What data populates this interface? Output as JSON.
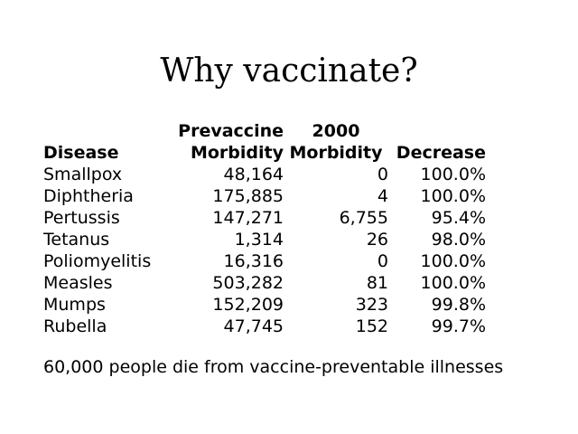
{
  "title": "Why vaccinate?",
  "table": {
    "headers": {
      "disease": "Disease",
      "prevaccine_line1": "Prevaccine",
      "prevaccine_line2": "Morbidity",
      "y2000_line1": "2000",
      "y2000_line2": "Morbidity",
      "decrease": "Decrease"
    },
    "rows": [
      {
        "disease": "Smallpox",
        "prevaccine": "48,164",
        "y2000": "0",
        "decrease": "100.0%"
      },
      {
        "disease": "Diphtheria",
        "prevaccine": "175,885",
        "y2000": "4",
        "decrease": "100.0%"
      },
      {
        "disease": "Pertussis",
        "prevaccine": "147,271",
        "y2000": "6,755",
        "decrease": "95.4%"
      },
      {
        "disease": "Tetanus",
        "prevaccine": "1,314",
        "y2000": "26",
        "decrease": "98.0%"
      },
      {
        "disease": "Poliomyelitis",
        "prevaccine": "16,316",
        "y2000": "0",
        "decrease": "100.0%"
      },
      {
        "disease": "Measles",
        "prevaccine": "503,282",
        "y2000": "81",
        "decrease": "100.0%"
      },
      {
        "disease": "Mumps",
        "prevaccine": "152,209",
        "y2000": "323",
        "decrease": "99.8%"
      },
      {
        "disease": "Rubella",
        "prevaccine": "47,745",
        "y2000": "152",
        "decrease": "99.7%"
      }
    ]
  },
  "footnote": "60,000 people die from vaccine-preventable illnesses"
}
